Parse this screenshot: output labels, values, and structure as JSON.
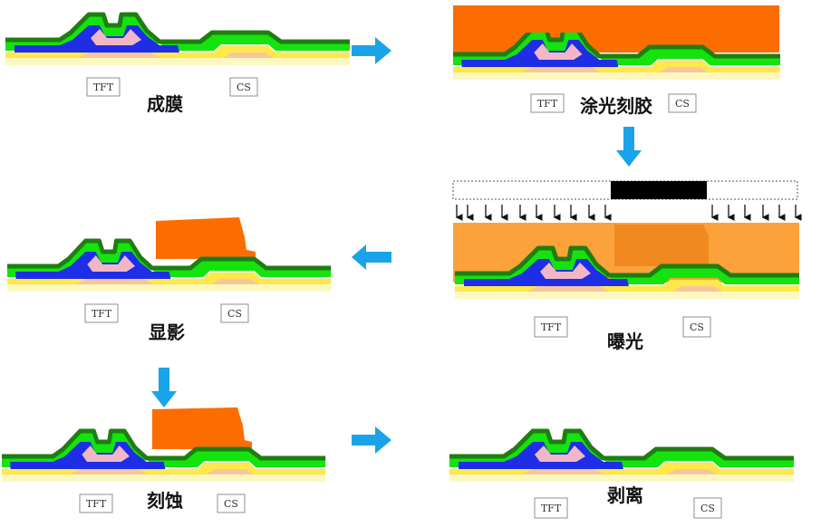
{
  "diagram_title": "",
  "colors": {
    "substrate": "#fdf8c0",
    "yellow": "#ffe84a",
    "pink": "#f2b7c6",
    "peach": "#f6c79d",
    "blue": "#1d2ee6",
    "green": "#14e30e",
    "dark_green": "#1f7d12",
    "photoresist": "#fb6d00",
    "photoresist_light": "#fba23a",
    "photoresist_edge": "#f08a20",
    "mask_dark": "#000000",
    "arrow": "#1aa3e8"
  },
  "steps": [
    {
      "id": "film",
      "title": "成膜",
      "tft": "TFT",
      "cs": "CS"
    },
    {
      "id": "coat",
      "title": "涂光刻胶",
      "tft": "TFT",
      "cs": "CS"
    },
    {
      "id": "expose",
      "title": "曝光",
      "tft": "TFT",
      "cs": "CS"
    },
    {
      "id": "develop",
      "title": "显影",
      "tft": "TFT",
      "cs": "CS"
    },
    {
      "id": "etch",
      "title": "刻蚀",
      "tft": "TFT",
      "cs": "CS"
    },
    {
      "id": "strip",
      "title": "剥离",
      "tft": "TFT",
      "cs": "CS"
    }
  ]
}
